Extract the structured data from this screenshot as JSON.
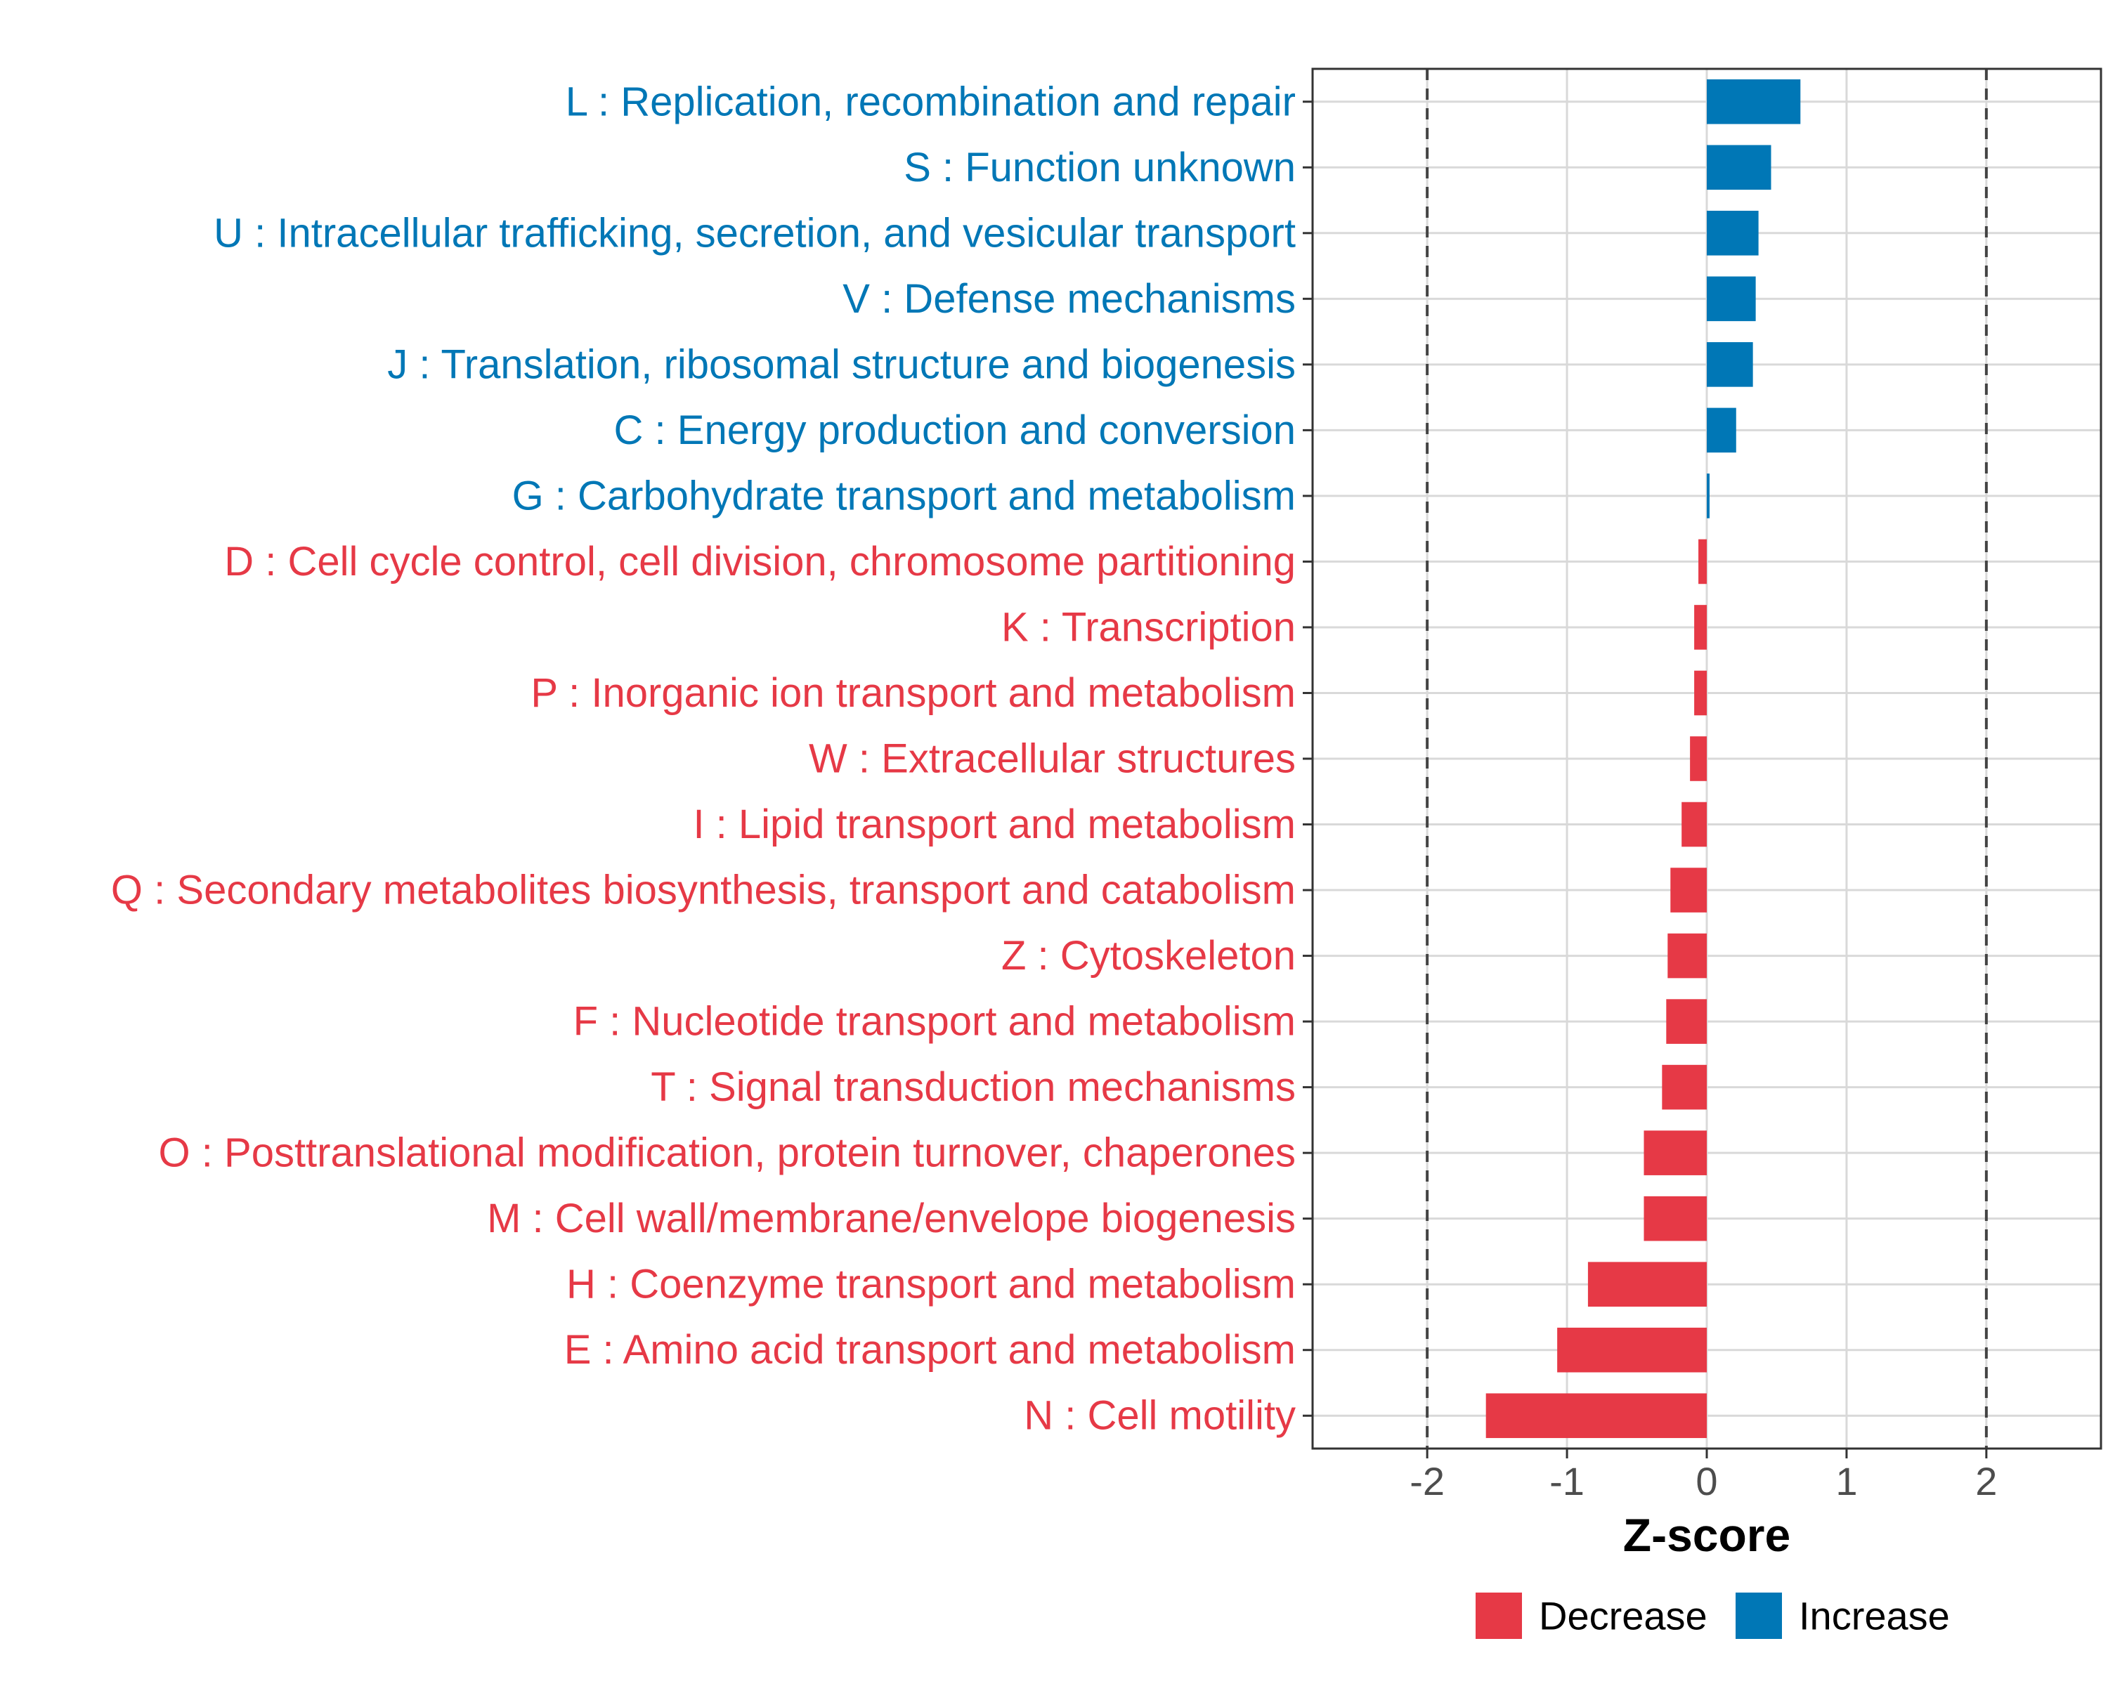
{
  "chart_data": {
    "type": "bar",
    "orientation": "horizontal",
    "title": "",
    "xlabel": "Z-score",
    "ylabel": "",
    "xlim": [
      -2.82,
      2.82
    ],
    "xticks": [
      -2,
      -1,
      0,
      1,
      2
    ],
    "xtick_labels": [
      "-2",
      "-1",
      "0",
      "1",
      "2"
    ],
    "reference_lines": [
      -2,
      2
    ],
    "grid": true,
    "categories": [
      "L : Replication, recombination and repair",
      "S : Function unknown",
      "U : Intracellular trafficking, secretion, and vesicular transport",
      "V : Defense mechanisms",
      "J : Translation, ribosomal structure and biogenesis",
      "C : Energy production and conversion",
      "G : Carbohydrate transport and metabolism",
      "D : Cell cycle control, cell division, chromosome partitioning",
      "K : Transcription",
      "P : Inorganic ion transport and metabolism",
      "W : Extracellular structures",
      "I : Lipid transport and metabolism",
      "Q : Secondary metabolites biosynthesis, transport and catabolism",
      "Z : Cytoskeleton",
      "F : Nucleotide transport and metabolism",
      "T : Signal transduction mechanisms",
      "O : Posttranslational modification, protein turnover, chaperones",
      "M : Cell wall/membrane/envelope biogenesis",
      "H : Coenzyme transport and metabolism",
      "E : Amino acid transport and metabolism",
      "N : Cell motility"
    ],
    "values": [
      0.67,
      0.46,
      0.37,
      0.35,
      0.33,
      0.21,
      0.02,
      -0.06,
      -0.09,
      -0.09,
      -0.12,
      -0.18,
      -0.26,
      -0.28,
      -0.29,
      -0.32,
      -0.45,
      -0.45,
      -0.85,
      -1.07,
      -1.58
    ],
    "groups": [
      "Increase",
      "Increase",
      "Increase",
      "Increase",
      "Increase",
      "Increase",
      "Increase",
      "Decrease",
      "Decrease",
      "Decrease",
      "Decrease",
      "Decrease",
      "Decrease",
      "Decrease",
      "Decrease",
      "Decrease",
      "Decrease",
      "Decrease",
      "Decrease",
      "Decrease",
      "Decrease"
    ],
    "legend": {
      "position": "bottom",
      "entries": [
        {
          "label": "Decrease",
          "color": "#e63946"
        },
        {
          "label": "Increase",
          "color": "#0077b6"
        }
      ]
    },
    "colors": {
      "Decrease": "#e63946",
      "Increase": "#0077b6"
    }
  }
}
